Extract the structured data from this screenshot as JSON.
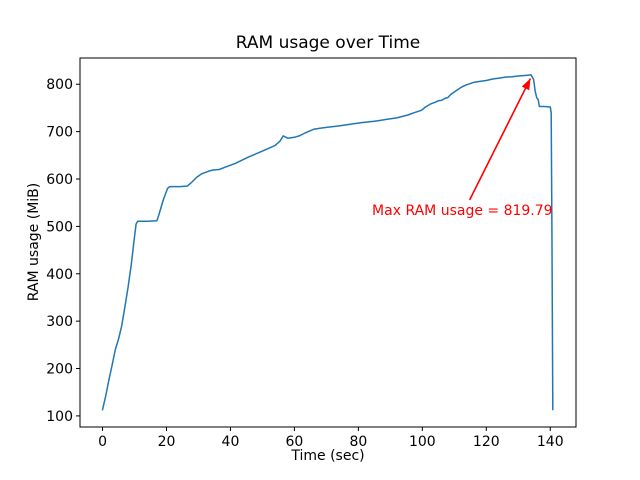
{
  "figure": {
    "background": "#ffffff",
    "frame_color": "#000000"
  },
  "chart_data": {
    "type": "line",
    "title": "RAM usage over Time",
    "xlabel": "Time (sec)",
    "ylabel": "RAM usage (MiB)",
    "xlim": [
      -7.05,
      148.05
    ],
    "ylim": [
      76.6,
      855.4
    ],
    "xticks": [
      0,
      20,
      40,
      60,
      80,
      100,
      120,
      140
    ],
    "yticks": [
      100,
      200,
      300,
      400,
      500,
      600,
      700,
      800
    ],
    "grid": false,
    "legend": null,
    "series": [
      {
        "name": "RAM usage",
        "color": "#1f77b4",
        "x": [
          0,
          1,
          2,
          3,
          4,
          5,
          6,
          7,
          8,
          9,
          10,
          10.5,
          11,
          14,
          17,
          17.6,
          19,
          20.3,
          21,
          24,
          26.5,
          28,
          29.5,
          31,
          33,
          34.5,
          36.5,
          38,
          41.5,
          45.5,
          50,
          54,
          55.5,
          56.5,
          58,
          60,
          61.5,
          63,
          64,
          66,
          68,
          70,
          74,
          78,
          81,
          85,
          89,
          92,
          95.5,
          97,
          99.7,
          101,
          102.5,
          104,
          105,
          106,
          107,
          108,
          109,
          110.5,
          112,
          113.5,
          116,
          118,
          120,
          122,
          124,
          126,
          128,
          130,
          132,
          134,
          134.8,
          135.3,
          135.8,
          136.2,
          136.6,
          138,
          140,
          140.3,
          140.5,
          140.8
        ],
        "y": [
          113,
          142,
          176,
          207,
          240,
          262,
          290,
          330,
          372,
          420,
          478,
          505,
          511,
          511,
          512,
          524,
          556,
          580,
          584,
          584,
          585,
          594,
          604,
          611,
          616,
          619,
          620,
          624,
          633,
          646,
          659,
          671,
          680,
          691,
          686,
          688,
          691,
          696,
          699,
          705,
          707,
          709,
          712,
          716,
          719,
          722,
          726,
          729,
          735,
          739,
          745,
          752,
          758,
          762,
          765,
          766,
          770,
          772,
          779,
          786,
          793,
          798,
          804,
          806,
          808,
          811,
          813,
          815,
          816,
          817.5,
          818.5,
          819.79,
          810,
          785,
          771,
          768,
          753,
          753,
          752,
          740,
          500,
          113
        ]
      }
    ],
    "annotation": {
      "text": "Max RAM usage = 819.79",
      "color": "#ff0000",
      "point": [
        134,
        819.79
      ],
      "text_center": [
        112.5,
        533
      ],
      "arrow_start": [
        114.8,
        556
      ],
      "arrow_end": [
        133.8,
        812
      ]
    }
  }
}
